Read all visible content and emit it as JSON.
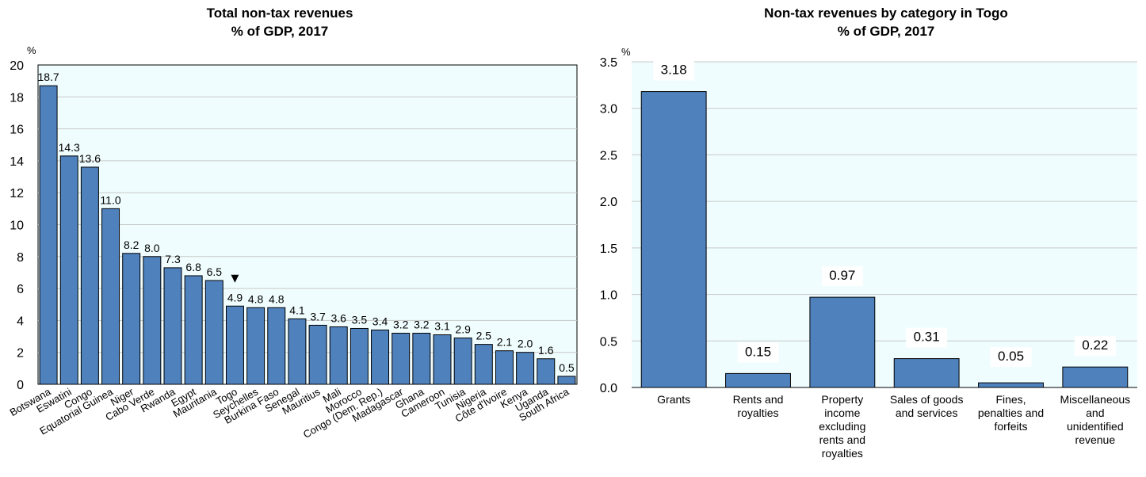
{
  "chart_data": [
    {
      "type": "bar",
      "title": [
        "Total non-tax revenues",
        "% of GDP, 2017"
      ],
      "ylabel": "%",
      "ylim": [
        0,
        20
      ],
      "yticks": [
        0,
        2,
        4,
        6,
        8,
        10,
        12,
        14,
        16,
        18,
        20
      ],
      "yticklabels": [
        "0",
        "2",
        "4",
        "6",
        "8",
        "10",
        "12",
        "14",
        "16",
        "18",
        "20"
      ],
      "grid": true,
      "categories": [
        "Botswana",
        "Eswatini",
        "Congo",
        "Equatorial Guinea",
        "Niger",
        "Cabo Verde",
        "Rwanda",
        "Egypt",
        "Mauritania",
        "Togo",
        "Seychelles",
        "Burkina Faso",
        "Senegal",
        "Mauritius",
        "Mali",
        "Morocco",
        "Congo (Dem. Rep.)",
        "Madagascar",
        "Ghana",
        "Cameroon",
        "Tunisia",
        "Nigeria",
        "Côte d'Ivoire",
        "Kenya",
        "Uganda",
        "South Africa"
      ],
      "values": [
        18.7,
        14.3,
        13.6,
        11.0,
        8.2,
        8.0,
        7.3,
        6.8,
        6.5,
        4.9,
        4.8,
        4.8,
        4.1,
        3.7,
        3.6,
        3.5,
        3.4,
        3.2,
        3.2,
        3.1,
        2.9,
        2.5,
        2.1,
        2.0,
        1.6,
        0.5
      ],
      "labels": [
        "18.7",
        "14.3",
        "13.6",
        "11.0",
        "8.2",
        "8.0",
        "7.3",
        "6.8",
        "6.5",
        "4.9",
        "4.8",
        "4.8",
        "4.1",
        "3.7",
        "3.6",
        "3.5",
        "3.4",
        "3.2",
        "3.2",
        "3.1",
        "2.9",
        "2.5",
        "2.1",
        "2.0",
        "1.6",
        "0.5"
      ],
      "highlight": "Togo",
      "highlight_marker": "▼",
      "bar_color": "#4f81bd",
      "plot_bg": "#f0fdfe"
    },
    {
      "type": "bar",
      "title": [
        "Non-tax revenues by category in Togo",
        "% of GDP, 2017"
      ],
      "ylabel": "%",
      "ylim": [
        0,
        3.5
      ],
      "yticks": [
        0,
        0.5,
        1.0,
        1.5,
        2.0,
        2.5,
        3.0,
        3.5
      ],
      "yticklabels": [
        "0.0",
        "0.5",
        "1.0",
        "1.5",
        "2.0",
        "2.5",
        "3.0",
        "3.5"
      ],
      "grid": true,
      "categories": [
        [
          "Grants"
        ],
        [
          "Rents and",
          "royalties"
        ],
        [
          "Property",
          "income",
          "excluding",
          "rents and",
          "royalties"
        ],
        [
          "Sales of goods",
          "and services"
        ],
        [
          "Fines,",
          "penalties and",
          "forfeits"
        ],
        [
          "Miscellaneous",
          "and",
          "unidentified",
          "revenue"
        ]
      ],
      "values": [
        3.18,
        0.15,
        0.97,
        0.31,
        0.05,
        0.22
      ],
      "labels": [
        "3.18",
        "0.15",
        "0.97",
        "0.31",
        "0.05",
        "0.22"
      ],
      "bar_color": "#4f81bd",
      "plot_bg": "#f0fdfe"
    }
  ]
}
